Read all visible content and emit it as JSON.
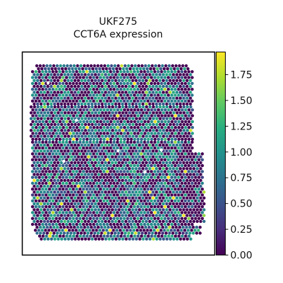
{
  "chart_data": {
    "type": "heatmap",
    "title_lines": [
      "UKF275",
      "CCT6A expression"
    ],
    "xlabel": "",
    "ylabel": "",
    "colorbar": {
      "min": 0.0,
      "max": 1.97,
      "ticks": [
        0.0,
        0.25,
        0.5,
        0.75,
        1.0,
        1.25,
        1.5,
        1.75
      ],
      "tick_labels": [
        "0.00",
        "0.25",
        "0.50",
        "0.75",
        "1.00",
        "1.25",
        "1.50",
        "1.75"
      ],
      "colormap": "viridis"
    },
    "value_distribution": {
      "zero_fraction": 0.42,
      "typical_nonzero": [
        0.5,
        1.1
      ],
      "max_observed": 1.97
    },
    "grid": false,
    "axes_ticks": false
  },
  "colors": {
    "low": "#440154",
    "mid": "#21918c",
    "high": "#fde725"
  }
}
